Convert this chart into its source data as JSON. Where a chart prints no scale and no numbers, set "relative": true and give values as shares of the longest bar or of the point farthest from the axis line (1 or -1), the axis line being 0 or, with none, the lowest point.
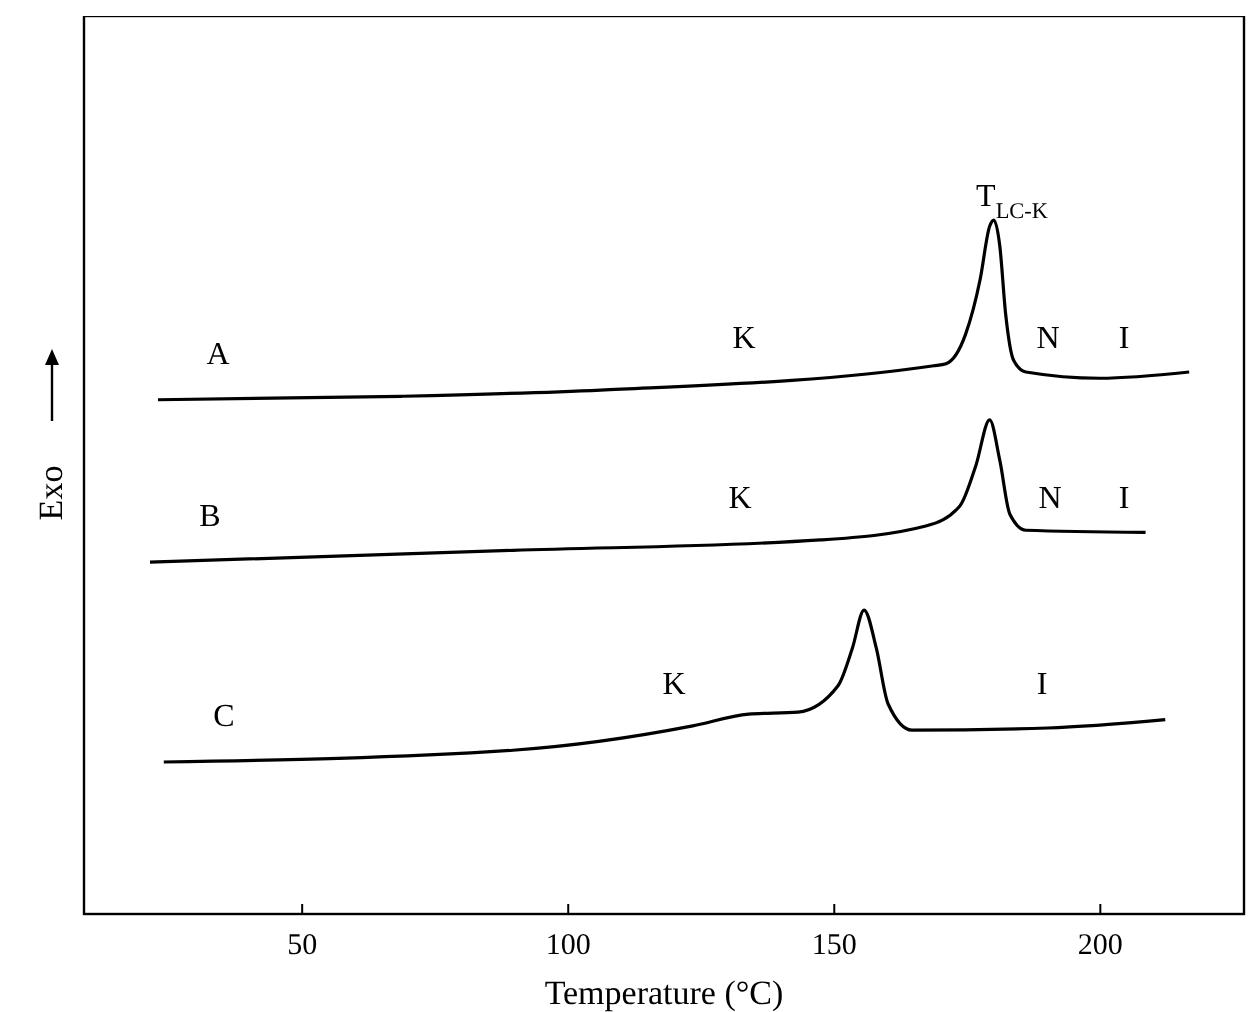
{
  "chart_data": {
    "type": "line",
    "relative": true,
    "xlabel": "Temperature (°C)",
    "ylabel": "Exo",
    "xlim": [
      9,
      227
    ],
    "xticks": [
      50,
      100,
      150,
      200
    ],
    "grid": false,
    "marker": "none",
    "line_style": "solid",
    "series": [
      {
        "name": "A",
        "color": "#000000",
        "x": [
          22.9,
          68.6,
          106.1,
          168.7,
          171,
          174.7,
          177.4,
          179.2,
          180,
          181.1,
          182.2,
          183.7,
          186,
          199.9,
          216.7
        ],
        "values": [
          0.741,
          0.746,
          0.755,
          0.79,
          0.793,
          0.836,
          0.914,
          0.991,
          1,
          0.963,
          0.865,
          0.798,
          0.781,
          0.772,
          0.781
        ]
      },
      {
        "name": "B",
        "color": "#000000",
        "x": [
          21.4,
          89.6,
          147.4,
          167.2,
          173.6,
          176.6,
          179.2,
          181.1,
          183,
          186,
          208.5
        ],
        "values": [
          0.507,
          0.524,
          0.539,
          0.559,
          0.588,
          0.646,
          0.712,
          0.654,
          0.576,
          0.553,
          0.55
        ]
      },
      {
        "name": "C",
        "color": "#000000",
        "x": [
          24,
          89.6,
          123.4,
          133.9,
          143.2,
          150.7,
          153.4,
          155.6,
          157.9,
          160.1,
          164.6,
          190.1,
          212.2
        ],
        "values": [
          0.219,
          0.236,
          0.271,
          0.288,
          0.291,
          0.329,
          0.383,
          0.438,
          0.383,
          0.303,
          0.265,
          0.268,
          0.28
        ]
      }
    ],
    "annotations": [
      "T$_{LC-K}$",
      "K",
      "N",
      "I",
      "K",
      "N",
      "I",
      "K",
      "I"
    ]
  }
}
